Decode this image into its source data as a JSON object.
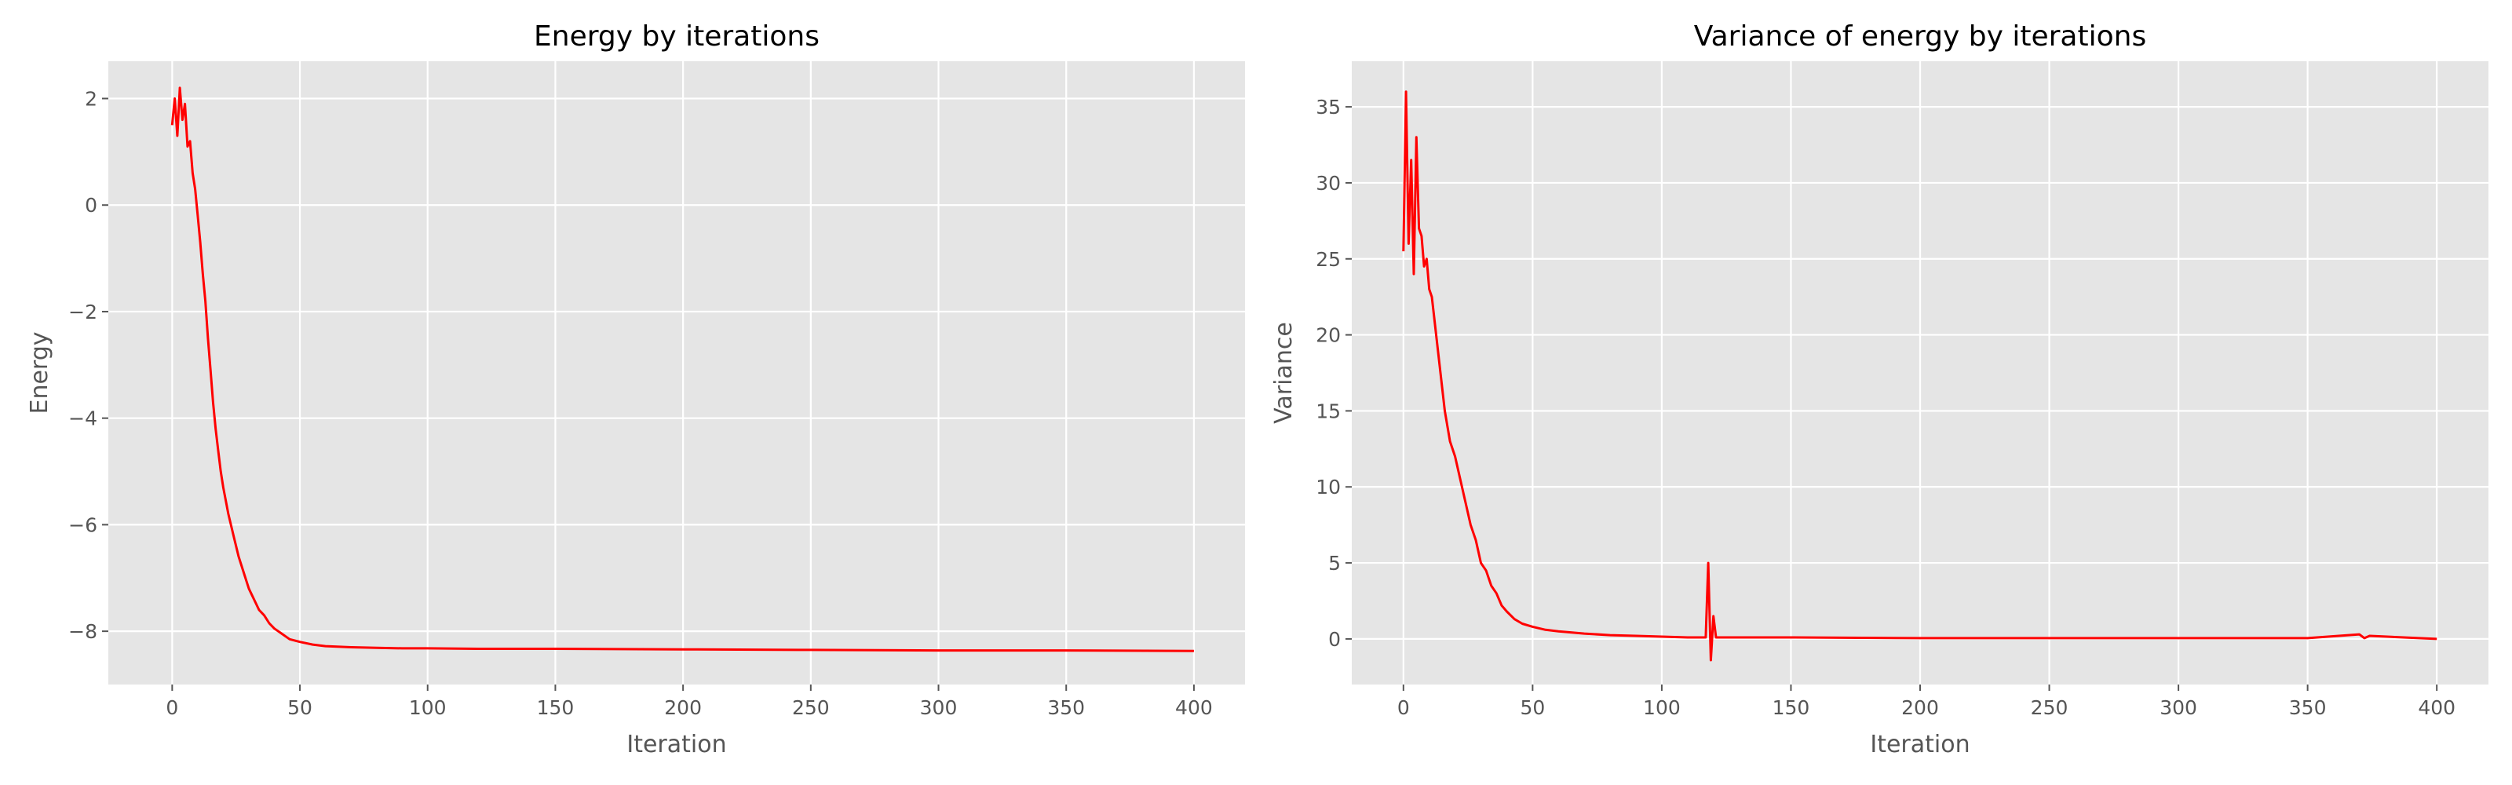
{
  "colors": {
    "line": "#ff0000",
    "plot_background": "#e5e5e5",
    "grid": "#ffffff"
  },
  "chart_data": [
    {
      "type": "line",
      "title": "Energy by iterations",
      "xlabel": "Iteration",
      "ylabel": "Energy",
      "xlim": [
        -25,
        420
      ],
      "ylim": [
        -9.0,
        2.7
      ],
      "xticks": [
        0,
        50,
        100,
        150,
        200,
        250,
        300,
        350,
        400
      ],
      "xtick_labels": [
        "0",
        "50",
        "100",
        "150",
        "200",
        "250",
        "300",
        "350",
        "400"
      ],
      "yticks": [
        -8,
        -6,
        -4,
        -2,
        0,
        2
      ],
      "ytick_labels": [
        "−8",
        "−6",
        "−4",
        "−2",
        "0",
        "2"
      ],
      "grid": true,
      "legend": "none",
      "series": [
        {
          "x": [
            0,
            1,
            2,
            3,
            4,
            5,
            6,
            7,
            8,
            9,
            10,
            11,
            12,
            13,
            14,
            15,
            16,
            17,
            18,
            19,
            20,
            22,
            24,
            26,
            28,
            30,
            32,
            34,
            36,
            38,
            40,
            43,
            46,
            50,
            55,
            60,
            70,
            80,
            90,
            100,
            120,
            150,
            200,
            250,
            300,
            350,
            400
          ],
          "values": [
            1.5,
            2.0,
            1.3,
            2.2,
            1.6,
            1.9,
            1.1,
            1.2,
            0.6,
            0.3,
            -0.2,
            -0.7,
            -1.3,
            -1.8,
            -2.5,
            -3.1,
            -3.7,
            -4.2,
            -4.6,
            -5.0,
            -5.3,
            -5.8,
            -6.2,
            -6.6,
            -6.9,
            -7.2,
            -7.4,
            -7.6,
            -7.7,
            -7.85,
            -7.95,
            -8.05,
            -8.15,
            -8.2,
            -8.25,
            -8.28,
            -8.3,
            -8.31,
            -8.32,
            -8.32,
            -8.33,
            -8.33,
            -8.34,
            -8.35,
            -8.36,
            -8.36,
            -8.37
          ]
        }
      ]
    },
    {
      "type": "line",
      "title": "Variance of energy by iterations",
      "xlabel": "Iteration",
      "ylabel": "Variance",
      "xlim": [
        -20,
        420
      ],
      "ylim": [
        -3.0,
        38.0
      ],
      "xticks": [
        0,
        50,
        100,
        150,
        200,
        250,
        300,
        350,
        400
      ],
      "xtick_labels": [
        "0",
        "50",
        "100",
        "150",
        "200",
        "250",
        "300",
        "350",
        "400"
      ],
      "yticks": [
        0,
        5,
        10,
        15,
        20,
        25,
        30,
        35
      ],
      "ytick_labels": [
        "0",
        "5",
        "10",
        "15",
        "20",
        "25",
        "30",
        "35"
      ],
      "grid": true,
      "legend": "none",
      "series": [
        {
          "x": [
            0,
            1,
            2,
            3,
            4,
            5,
            6,
            7,
            8,
            9,
            10,
            11,
            12,
            13,
            14,
            15,
            16,
            17,
            18,
            20,
            22,
            24,
            26,
            28,
            30,
            32,
            34,
            36,
            38,
            40,
            43,
            46,
            50,
            55,
            60,
            70,
            80,
            90,
            100,
            110,
            117,
            118,
            119,
            120,
            121,
            125,
            150,
            200,
            250,
            300,
            350,
            370,
            372,
            374,
            400
          ],
          "values": [
            25.5,
            36.0,
            26.0,
            31.5,
            24.0,
            33.0,
            27.0,
            26.5,
            24.5,
            25.0,
            23.0,
            22.5,
            21.0,
            19.5,
            18.0,
            16.5,
            15.0,
            14.0,
            13.0,
            12.0,
            10.5,
            9.0,
            7.5,
            6.5,
            5.0,
            4.5,
            3.5,
            3.0,
            2.2,
            1.8,
            1.3,
            1.0,
            0.8,
            0.6,
            0.5,
            0.35,
            0.25,
            0.2,
            0.15,
            0.1,
            0.1,
            5.0,
            -1.4,
            1.5,
            0.1,
            0.1,
            0.1,
            0.05,
            0.05,
            0.05,
            0.05,
            0.3,
            0.05,
            0.2,
            0.0
          ]
        }
      ]
    }
  ]
}
